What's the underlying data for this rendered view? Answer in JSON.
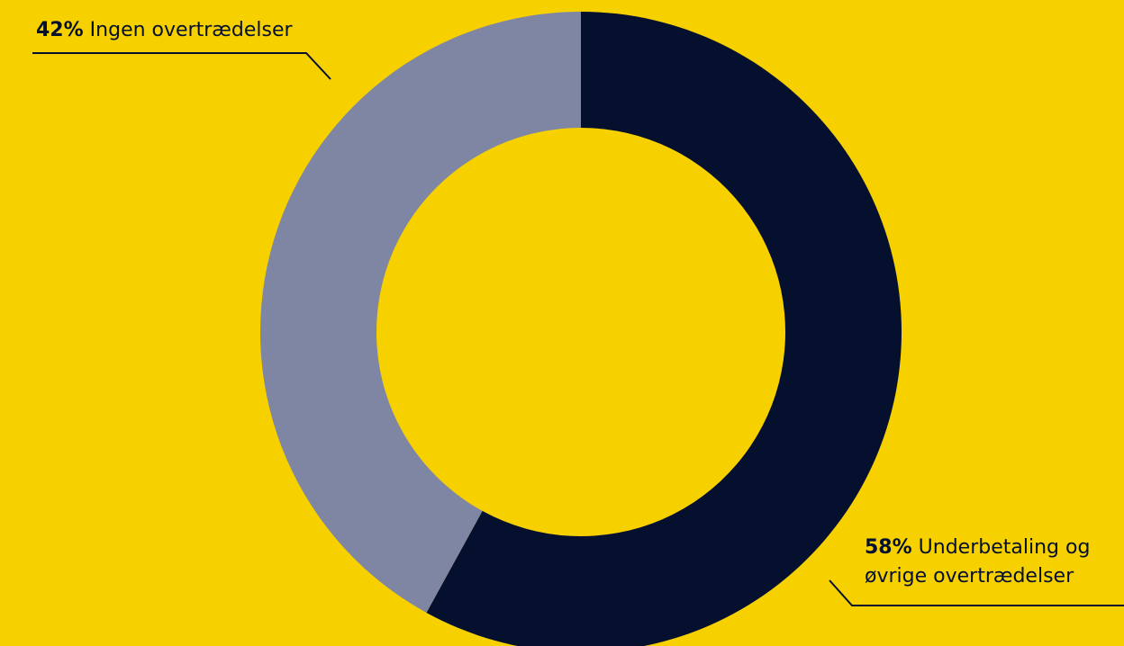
{
  "colors": {
    "background": "#F7D000",
    "slice_dark": "#05102E",
    "slice_light": "#7E86A3",
    "text": "#05102E"
  },
  "chart_data": {
    "type": "pie",
    "variant": "donut",
    "slices": [
      {
        "label": "Underbetaling og øvrige overtrædelser",
        "value": 58,
        "color": "#05102E"
      },
      {
        "label": "Ingen overtrædelser",
        "value": 42,
        "color": "#7E86A3"
      }
    ],
    "callouts": [
      {
        "pct": "42%",
        "text": "Ingen overtrædelser"
      },
      {
        "pct": "58%",
        "line1": "Underbetaling og",
        "line2": "øvrige overtrædelser"
      }
    ]
  }
}
